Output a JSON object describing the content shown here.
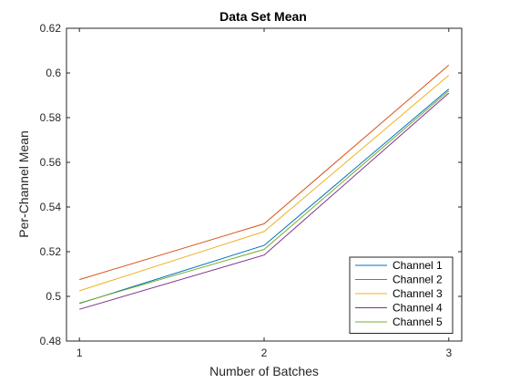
{
  "chart_data": {
    "type": "line",
    "title": "Data Set Mean",
    "xlabel": "Number of Batches",
    "ylabel": "Per-Channel Mean",
    "x": [
      1,
      2,
      3
    ],
    "xlim": [
      0.93,
      3.07
    ],
    "ylim": [
      0.48,
      0.62
    ],
    "xticks": [
      "1",
      "2",
      "3"
    ],
    "yticks": [
      "0.48",
      "0.5",
      "0.52",
      "0.54",
      "0.56",
      "0.58",
      "0.6",
      "0.62"
    ],
    "ytick_values": [
      0.48,
      0.5,
      0.52,
      0.54,
      0.56,
      0.58,
      0.6,
      0.62
    ],
    "grid": false,
    "legend_position": "bottom-right",
    "series": [
      {
        "name": "Channel 1",
        "values": [
          0.4968,
          0.5228,
          0.5928
        ],
        "color": "#0072BD"
      },
      {
        "name": "Channel 2",
        "values": [
          0.5075,
          0.5325,
          0.6035
        ],
        "color": "#D95319"
      },
      {
        "name": "Channel 3",
        "values": [
          0.5025,
          0.529,
          0.599
        ],
        "color": "#EDB120"
      },
      {
        "name": "Channel 4",
        "values": [
          0.4942,
          0.5185,
          0.591
        ],
        "color": "#7E2F8E"
      },
      {
        "name": "Channel 5",
        "values": [
          0.497,
          0.521,
          0.592
        ],
        "color": "#77AC30"
      }
    ]
  }
}
